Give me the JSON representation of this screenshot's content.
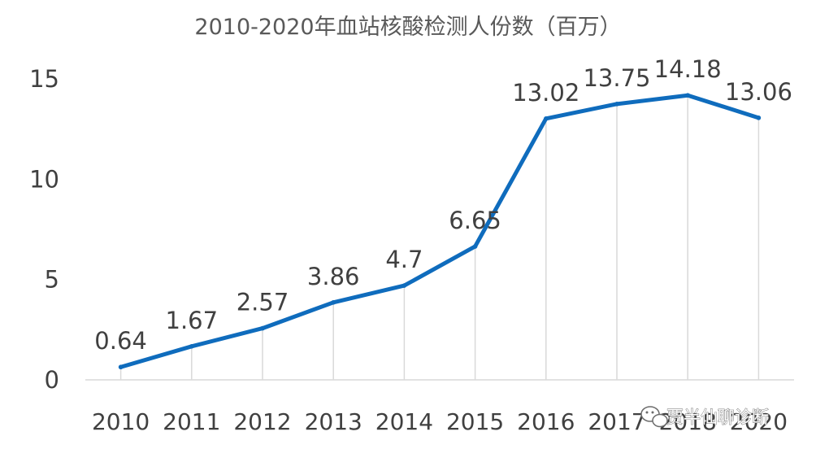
{
  "chart_data": {
    "type": "line",
    "title": "2010-2020年血站核酸检测人份数（百万）",
    "categories": [
      "2010",
      "2011",
      "2012",
      "2013",
      "2014",
      "2015",
      "2016",
      "2017",
      "2018",
      "2020"
    ],
    "series": [
      {
        "values": [
          0.64,
          1.67,
          2.57,
          3.86,
          4.7,
          6.65,
          13.02,
          13.75,
          14.18,
          13.06
        ]
      }
    ],
    "data_labels": [
      "0.64",
      "1.67",
      "2.57",
      "3.86",
      "4.7",
      "6.65",
      "13.02",
      "13.75",
      "14.18",
      "13.06"
    ],
    "yticks": [
      0,
      5,
      10,
      15
    ],
    "ylim": [
      0,
      15
    ],
    "xlabel": "",
    "ylabel": "",
    "grid": "vertical lines at category positions",
    "line_color": "#0f6cbd",
    "legend": "none"
  },
  "watermark": {
    "text": "贾半仙聊诊断",
    "icon": "wechat-icon"
  }
}
